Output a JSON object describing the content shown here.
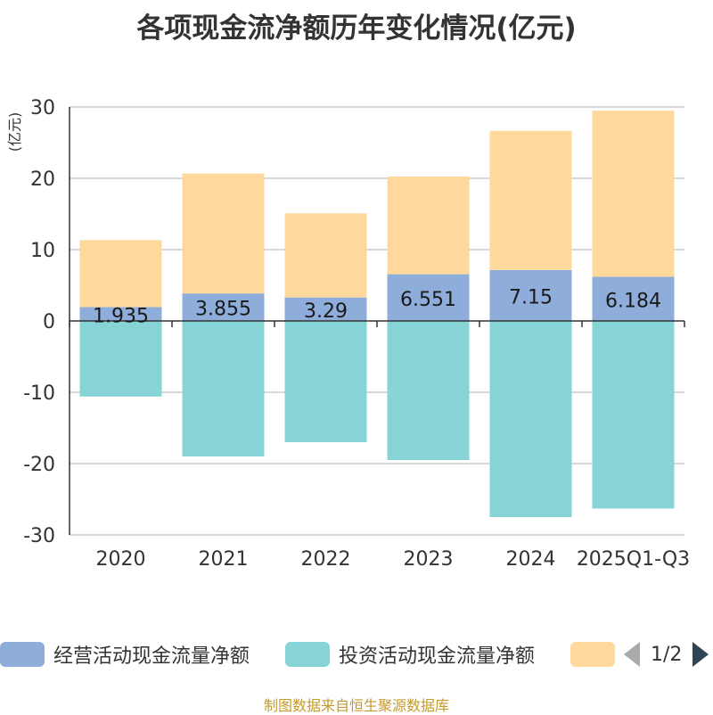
{
  "title": "各项现金流净额历年变化情况(亿元)",
  "unit_label": "(亿元)",
  "source": "制图数据来自恒生聚源数据库",
  "legend": {
    "pager": "1/2",
    "prev_icon": "chevron-left-icon",
    "next_icon": "chevron-right-icon"
  },
  "colors": {
    "operating": "#8eaddb",
    "investing": "#86d4d6",
    "third": "#fed99b",
    "unit": "#e00000",
    "axis": "#333333",
    "grid": "#cccccc"
  },
  "chart_data": {
    "type": "bar",
    "stacked": true,
    "categories": [
      "2020",
      "2021",
      "2022",
      "2023",
      "2024",
      "2025Q1-Q3"
    ],
    "ylim": [
      -30,
      30
    ],
    "yticks": [
      30,
      20,
      10,
      0,
      -10,
      -20,
      -30
    ],
    "grid": true,
    "legend_position": "bottom",
    "series": [
      {
        "name": "经营活动现金流量净额",
        "values": [
          1.935,
          3.855,
          3.29,
          6.551,
          7.15,
          6.184
        ],
        "data_labels": [
          "1.935",
          "3.855",
          "3.29",
          "6.551",
          "7.15",
          "6.184"
        ]
      },
      {
        "name": "投资活动现金流量净额",
        "values": [
          -10.6,
          -19.0,
          -17.0,
          -19.5,
          -27.5,
          -26.3
        ]
      },
      {
        "name": "",
        "values": [
          9.4,
          16.8,
          11.8,
          13.7,
          19.5,
          23.3
        ]
      }
    ]
  }
}
